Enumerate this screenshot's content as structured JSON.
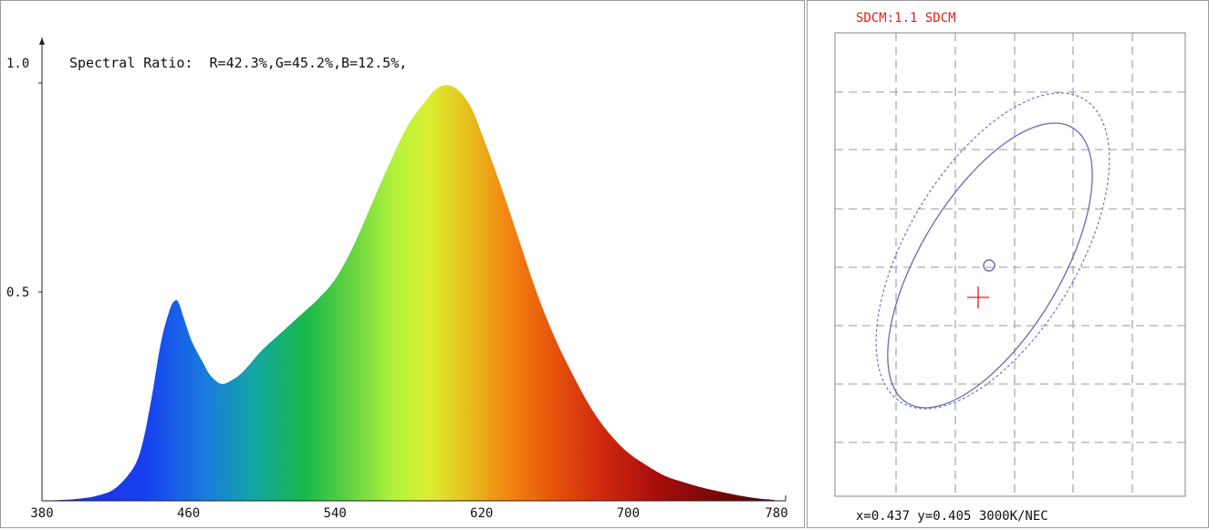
{
  "chart_data": [
    {
      "type": "area",
      "title": "Spectral Ratio:  R=42.3%,G=45.2%,B=12.5%,",
      "xlabel": "",
      "ylabel": "",
      "xlim": [
        380,
        780
      ],
      "ylim": [
        0,
        1.0
      ],
      "x_ticks": [
        380,
        460,
        540,
        620,
        700,
        780
      ],
      "y_ticks": [
        {
          "value": 0.5,
          "label": "0.5"
        },
        {
          "value": 1.0,
          "label": "1.0"
        }
      ],
      "fill": "visible-spectrum-gradient",
      "series": [
        {
          "x": [
            380,
            390,
            400,
            410,
            420,
            430,
            435,
            440,
            445,
            450,
            453,
            455,
            458,
            462,
            468,
            472,
            478,
            484,
            490,
            500,
            510,
            520,
            530,
            540,
            550,
            560,
            570,
            580,
            590,
            595,
            600,
            605,
            610,
            615,
            620,
            630,
            640,
            650,
            660,
            670,
            680,
            690,
            700,
            710,
            720,
            730,
            740,
            750,
            760,
            770,
            780
          ],
          "y": [
            0.0,
            0.002,
            0.005,
            0.012,
            0.03,
            0.08,
            0.14,
            0.25,
            0.38,
            0.46,
            0.48,
            0.47,
            0.43,
            0.38,
            0.33,
            0.3,
            0.28,
            0.29,
            0.31,
            0.36,
            0.4,
            0.44,
            0.48,
            0.53,
            0.61,
            0.71,
            0.81,
            0.9,
            0.96,
            0.985,
            0.995,
            0.99,
            0.97,
            0.935,
            0.88,
            0.76,
            0.63,
            0.5,
            0.39,
            0.3,
            0.22,
            0.16,
            0.115,
            0.085,
            0.06,
            0.045,
            0.032,
            0.022,
            0.013,
            0.006,
            0.002
          ]
        }
      ]
    },
    {
      "type": "scatter",
      "title": "SDCM:1.1 SDCM",
      "xlabel": "",
      "ylabel": "",
      "grid": true,
      "annotation": "x=0.437 y=0.405 3000K/NEC",
      "measured_point": {
        "x": 0.437,
        "y": 0.405
      }
    }
  ],
  "colors": {
    "sdcm_title": "#e0201a",
    "ellipse": "#6a6ab8",
    "cross": "#e0201a",
    "grid": "#9a9a9a"
  }
}
